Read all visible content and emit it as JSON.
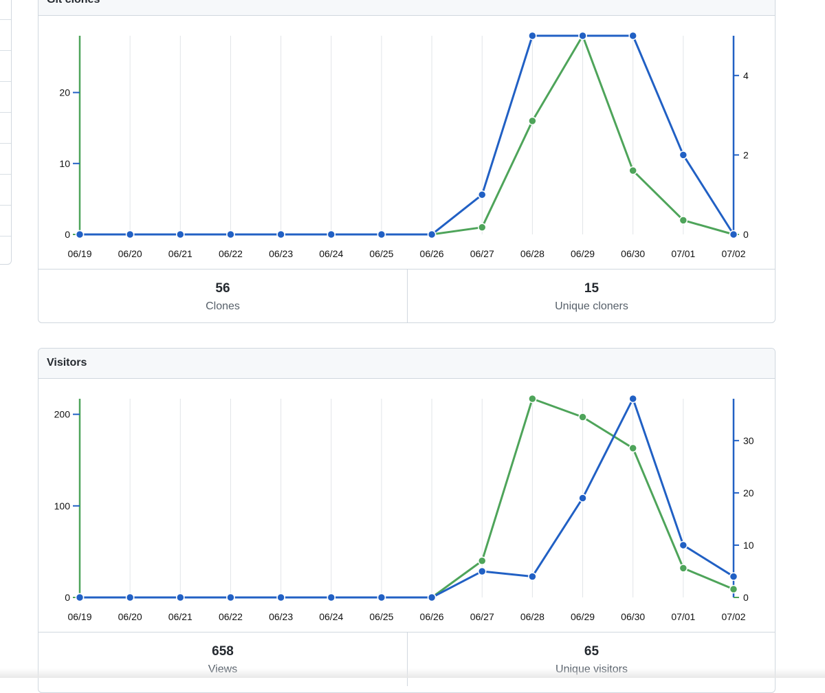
{
  "panels": [
    {
      "title": "Git clones",
      "stats": [
        {
          "value": "56",
          "label": "Clones"
        },
        {
          "value": "15",
          "label": "Unique cloners"
        }
      ]
    },
    {
      "title": "Visitors",
      "stats": [
        {
          "value": "658",
          "label": "Views"
        },
        {
          "value": "65",
          "label": "Unique visitors"
        }
      ]
    }
  ],
  "colors": {
    "green": "#4ea45a",
    "blue": "#2160c4",
    "grid": "#e1e4e8"
  },
  "chart_data": [
    {
      "type": "line",
      "title": "Git clones",
      "categories": [
        "06/19",
        "06/20",
        "06/21",
        "06/22",
        "06/23",
        "06/24",
        "06/25",
        "06/26",
        "06/27",
        "06/28",
        "06/29",
        "06/30",
        "07/01",
        "07/02"
      ],
      "series": [
        {
          "axis": "left",
          "color": "green",
          "values": [
            0,
            0,
            0,
            0,
            0,
            0,
            0,
            0,
            1,
            16,
            28,
            9,
            2,
            0
          ]
        },
        {
          "axis": "right",
          "color": "blue",
          "values": [
            0,
            0,
            0,
            0,
            0,
            0,
            0,
            0,
            1,
            5,
            5,
            5,
            2,
            0
          ]
        }
      ],
      "y_left": {
        "min": 0,
        "max": 28,
        "ticks": [
          0,
          10,
          20
        ]
      },
      "y_right": {
        "min": 0,
        "max": 5,
        "ticks": [
          0,
          2,
          4
        ]
      },
      "grid": "vertical"
    },
    {
      "type": "line",
      "title": "Visitors",
      "categories": [
        "06/19",
        "06/20",
        "06/21",
        "06/22",
        "06/23",
        "06/24",
        "06/25",
        "06/26",
        "06/27",
        "06/28",
        "06/29",
        "06/30",
        "07/01",
        "07/02"
      ],
      "series": [
        {
          "axis": "left",
          "color": "green",
          "values": [
            0,
            0,
            0,
            0,
            0,
            0,
            0,
            0,
            40,
            217,
            197,
            163,
            32,
            9
          ]
        },
        {
          "axis": "right",
          "color": "blue",
          "values": [
            0,
            0,
            0,
            0,
            0,
            0,
            0,
            0,
            5,
            4,
            19,
            38,
            10,
            4
          ]
        }
      ],
      "y_left": {
        "min": 0,
        "max": 217,
        "ticks": [
          0,
          100,
          200
        ]
      },
      "y_right": {
        "min": 0,
        "max": 38,
        "ticks": [
          0,
          10,
          20,
          30
        ]
      },
      "grid": "vertical"
    }
  ]
}
